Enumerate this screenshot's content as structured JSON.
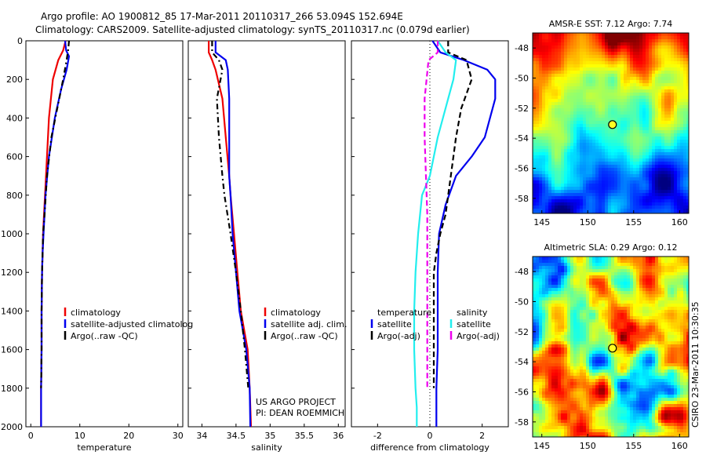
{
  "header": {
    "line1": "Argo profile: AO 1900812_85 17-Mar-2011 20110317_266 53.094S 152.694E",
    "line2": "Climatology: CARS2009. Satellite-adjusted climatology: synTS_20110317.nc (0.079d earlier)"
  },
  "colors": {
    "climatology": "#ee0000",
    "satellite": "#0000ee",
    "argo": "#000000",
    "sat_salinity": "#22eeee",
    "argo_salinity": "#ee00ee"
  },
  "chart_data": [
    {
      "id": "temperature",
      "type": "line",
      "xlabel": "temperature",
      "ylabel": "",
      "xlim": [
        -1,
        31
      ],
      "ylim": [
        2000,
        0
      ],
      "xticks": [
        "0",
        "10",
        "20",
        "30"
      ],
      "xtick_values": [
        0,
        10,
        20,
        30
      ],
      "yticks": [
        "0",
        "200",
        "400",
        "600",
        "800",
        "1000",
        "1200",
        "1400",
        "1600",
        "1800",
        "2000"
      ],
      "ytick_values": [
        0,
        200,
        400,
        600,
        800,
        1000,
        1200,
        1400,
        1600,
        1800,
        2000
      ],
      "legend": [
        "climatology",
        "satellite-adjusted climatolog",
        "Argo(..raw -QC)"
      ],
      "series": [
        {
          "name": "climatology",
          "color": "#ee0000",
          "dash": "",
          "x": [
            7.1,
            6.6,
            5.6,
            4.5,
            3.7,
            3.3,
            2.9,
            2.7,
            2.5,
            2.4,
            2.3,
            2.2,
            2.2,
            2.1,
            2.1
          ],
          "y": [
            0,
            50,
            100,
            200,
            400,
            600,
            800,
            900,
            1000,
            1100,
            1200,
            1400,
            1600,
            1800,
            2000
          ]
        },
        {
          "name": "satellite-adjusted climatolog",
          "color": "#0000ee",
          "dash": "",
          "x": [
            7.0,
            7.2,
            7.8,
            7.3,
            6.2,
            4.9,
            3.7,
            3.0,
            2.6,
            2.4,
            2.3,
            2.2,
            2.2,
            2.1,
            2.1
          ],
          "y": [
            0,
            50,
            80,
            150,
            250,
            400,
            600,
            800,
            1000,
            1100,
            1200,
            1400,
            1600,
            1800,
            2000
          ]
        },
        {
          "name": "Argo(..raw -QC)",
          "color": "#000000",
          "dash": "7,4,2,4",
          "x": [
            7.8,
            7.6,
            7.3,
            6.6,
            5.4,
            4.2,
            3.3,
            2.8,
            2.5,
            2.4,
            2.3,
            2.2,
            2.2,
            2.1
          ],
          "y": [
            0,
            50,
            100,
            200,
            350,
            500,
            700,
            900,
            1000,
            1100,
            1200,
            1400,
            1600,
            1800
          ]
        }
      ]
    },
    {
      "id": "salinity",
      "type": "line",
      "xlabel": "salinity",
      "ylabel": "",
      "xlim": [
        33.8,
        36.1
      ],
      "ylim": [
        2000,
        0
      ],
      "xticks": [
        "34",
        "34.5",
        "35",
        "35.5",
        "36"
      ],
      "xtick_values": [
        34,
        34.5,
        35,
        35.5,
        36
      ],
      "legend": [
        "climatology",
        "satellite adj. clim.",
        "Argo(..raw -QC)"
      ],
      "series": [
        {
          "name": "climatology",
          "color": "#ee0000",
          "dash": "",
          "x": [
            34.1,
            34.1,
            34.15,
            34.2,
            34.3,
            34.35,
            34.4,
            34.42,
            34.47,
            34.52,
            34.57,
            34.62,
            34.67,
            34.7,
            34.72
          ],
          "y": [
            0,
            60,
            100,
            150,
            300,
            500,
            700,
            800,
            1000,
            1200,
            1400,
            1500,
            1600,
            1800,
            2000
          ]
        },
        {
          "name": "satellite adj. clim.",
          "color": "#0000ee",
          "dash": "",
          "x": [
            34.2,
            34.2,
            34.35,
            34.38,
            34.4,
            34.4,
            34.4,
            34.42,
            34.45,
            34.5,
            34.55,
            34.6,
            34.65,
            34.7,
            34.71
          ],
          "y": [
            0,
            60,
            100,
            150,
            300,
            500,
            700,
            800,
            1000,
            1200,
            1400,
            1500,
            1600,
            1800,
            2000
          ]
        },
        {
          "name": "Argo(..raw -QC)",
          "color": "#000000",
          "dash": "7,4,2,4",
          "x": [
            34.15,
            34.15,
            34.25,
            34.3,
            34.22,
            34.25,
            34.3,
            34.33,
            34.42,
            34.5,
            34.57,
            34.63,
            34.68
          ],
          "y": [
            0,
            60,
            100,
            150,
            300,
            500,
            700,
            800,
            1000,
            1200,
            1400,
            1600,
            1800
          ]
        }
      ]
    },
    {
      "id": "difference",
      "type": "line",
      "xlabel": "difference from climatology",
      "ylabel": "",
      "xlim": [
        -3.0,
        3.0
      ],
      "ylim": [
        2000,
        0
      ],
      "xticks": [
        "-2",
        "0",
        "2"
      ],
      "xtick_values": [
        -2,
        0,
        2
      ],
      "legend_temperature": {
        "title": "temperature",
        "items": [
          "satellite",
          "Argo(-adj)"
        ]
      },
      "legend_salinity": {
        "title": "salinity",
        "items": [
          "satellite",
          "Argo(-adj)"
        ]
      },
      "series": [
        {
          "name": "satellite",
          "group": "temperature",
          "color": "#0000ee",
          "dash": "",
          "x": [
            0.1,
            0.4,
            1.3,
            2.2,
            2.5,
            2.5,
            2.1,
            1.6,
            1.0,
            0.6,
            0.35,
            0.3,
            0.3,
            0.3,
            0.25,
            0.25
          ],
          "y": [
            0,
            60,
            100,
            150,
            200,
            300,
            500,
            600,
            700,
            850,
            1000,
            1200,
            1400,
            1600,
            1800,
            2000
          ]
        },
        {
          "name": "Argo(-adj)",
          "group": "temperature",
          "color": "#000000",
          "dash": "7,4",
          "x": [
            0.7,
            0.7,
            1.4,
            1.6,
            1.2,
            1.0,
            0.8,
            0.6,
            0.4,
            0.25,
            0.15,
            0.15,
            0.15,
            0.15
          ],
          "y": [
            0,
            60,
            100,
            200,
            350,
            500,
            700,
            900,
            1000,
            1100,
            1200,
            1400,
            1600,
            1800
          ]
        },
        {
          "name": "satellite",
          "group": "salinity",
          "color": "#22eeee",
          "dash": "",
          "x": [
            0.3,
            0.6,
            1.0,
            0.9,
            0.7,
            0.3,
            0.0,
            -0.3,
            -0.45,
            -0.55,
            -0.6,
            -0.6,
            -0.55,
            -0.5,
            -0.5
          ],
          "y": [
            0,
            60,
            100,
            200,
            300,
            500,
            700,
            800,
            1000,
            1200,
            1400,
            1600,
            1800,
            1900,
            2000
          ]
        },
        {
          "name": "Argo(-adj)",
          "group": "salinity",
          "color": "#ee00ee",
          "dash": "7,4",
          "x": [
            0.3,
            0.3,
            -0.05,
            -0.2,
            -0.2,
            -0.15,
            -0.1,
            -0.1,
            -0.1,
            -0.1,
            -0.1,
            -0.1
          ],
          "y": [
            0,
            60,
            100,
            300,
            500,
            700,
            900,
            1100,
            1300,
            1500,
            1700,
            1800
          ]
        }
      ]
    },
    {
      "id": "sst_map",
      "type": "heatmap",
      "title": "AMSR-E SST: 7.12 Argo: 7.74",
      "xlim": [
        144,
        161
      ],
      "ylim": [
        -59,
        -47
      ],
      "xticks": [
        "145",
        "150",
        "155",
        "160"
      ],
      "xtick_values": [
        145,
        150,
        155,
        160
      ],
      "yticks": [
        "-48",
        "-50",
        "-52",
        "-54",
        "-56",
        "-58"
      ],
      "ytick_values": [
        -48,
        -50,
        -52,
        -54,
        -56,
        -58
      ],
      "marker": {
        "lon": 152.694,
        "lat": -53.094
      }
    },
    {
      "id": "sla_map",
      "type": "heatmap",
      "title": "Altimetric SLA: 0.29 Argo: 0.12",
      "xlim": [
        144,
        161
      ],
      "ylim": [
        -59,
        -47
      ],
      "xticks": [
        "145",
        "150",
        "155",
        "160"
      ],
      "xtick_values": [
        145,
        150,
        155,
        160
      ],
      "yticks": [
        "-48",
        "-50",
        "-52",
        "-54",
        "-56",
        "-58"
      ],
      "ytick_values": [
        -48,
        -50,
        -52,
        -54,
        -56,
        -58
      ],
      "marker": {
        "lon": 152.694,
        "lat": -53.094
      }
    }
  ],
  "annotations": {
    "project": "US ARGO PROJECT",
    "pi": "PI: DEAN ROEMMICH",
    "credit": "CSIRO 23-Mar-2011 10:30:35"
  }
}
